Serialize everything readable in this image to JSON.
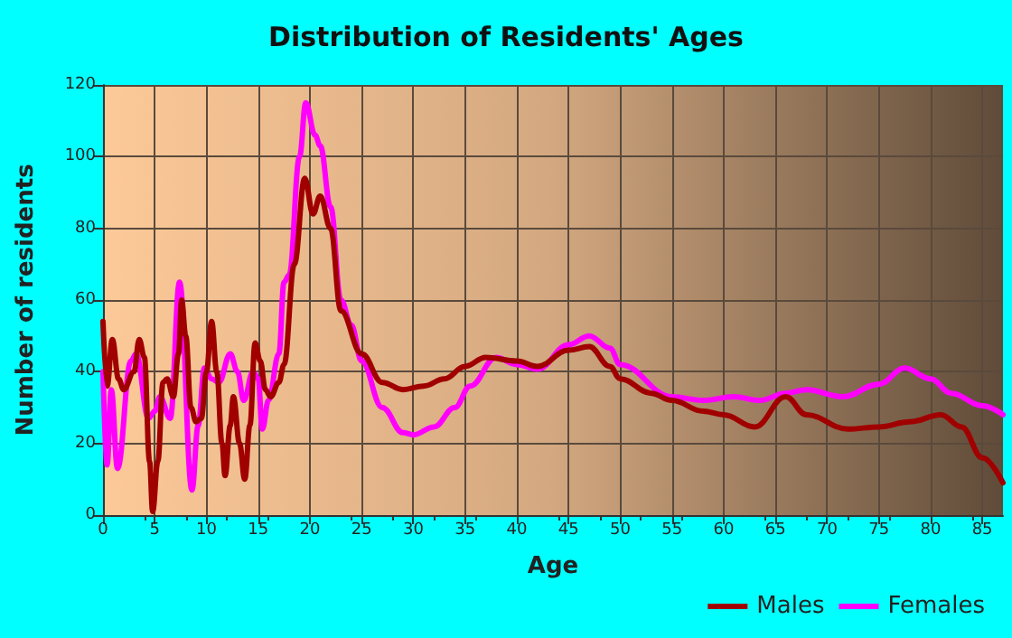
{
  "chart_data": {
    "type": "line",
    "title": "Distribution of Residents' Ages",
    "xlabel": "Age",
    "ylabel": "Number of residents",
    "xlim": [
      0,
      87
    ],
    "xticks": [
      0,
      5,
      10,
      15,
      20,
      25,
      30,
      35,
      40,
      45,
      50,
      55,
      60,
      65,
      70,
      75,
      80,
      85
    ],
    "ylim": [
      0,
      120
    ],
    "yticks": [
      0,
      20,
      40,
      60,
      80,
      100,
      120
    ],
    "grid": true,
    "legend": "bottom right",
    "marker": "none",
    "line_style": "solid",
    "series": [
      {
        "name": "Males",
        "color": "#a00000",
        "x": [
          0,
          0.4,
          0.9,
          1.5,
          2,
          3,
          3.5,
          4,
          4.5,
          4.8,
          5.3,
          5.8,
          6.2,
          6.8,
          7.3,
          7.6,
          8,
          8.5,
          9,
          9.5,
          10,
          10.5,
          11,
          11.5,
          11.8,
          12.3,
          12.6,
          13.2,
          13.7,
          14.2,
          14.7,
          15.2,
          15.7,
          16.2,
          17,
          17.5,
          18.5,
          19.5,
          20.3,
          21,
          22,
          23,
          25,
          27,
          29,
          31,
          33,
          35,
          37,
          40,
          42,
          45,
          47,
          49,
          50,
          53,
          55,
          58,
          60,
          63,
          66,
          68,
          72,
          75,
          78,
          81,
          83,
          85,
          87
        ],
        "values": [
          54,
          36,
          49,
          38,
          35,
          40,
          49,
          44,
          15,
          1,
          15,
          37,
          38,
          33,
          45,
          60,
          50,
          30,
          26,
          27,
          40,
          54,
          40,
          20,
          11,
          25,
          33,
          20,
          10,
          25,
          48,
          43,
          35,
          33,
          37,
          42,
          70,
          94,
          84,
          89,
          80,
          57,
          45,
          37,
          35,
          36,
          38,
          41.5,
          44,
          43,
          41.5,
          46,
          47,
          41.5,
          38,
          34,
          32,
          29,
          28,
          24.6,
          33,
          28,
          24,
          24.6,
          26,
          28,
          24.6,
          16,
          9
        ]
      },
      {
        "name": "Females",
        "color": "#ff00ff",
        "x": [
          0,
          0.4,
          0.8,
          1.4,
          2.7,
          3.2,
          4.4,
          5,
          5.5,
          6.5,
          7.4,
          8.6,
          9.2,
          9.8,
          10.5,
          11.2,
          12.3,
          13,
          13.6,
          14.5,
          15,
          15.4,
          16,
          17,
          17.5,
          18,
          19,
          19.6,
          20.5,
          21,
          22,
          23,
          24,
          25,
          27,
          29,
          30,
          32,
          34,
          35.5,
          38,
          40,
          42,
          45,
          47,
          49,
          50,
          55,
          58,
          61,
          63.5,
          66,
          68,
          71.5,
          75,
          77.5,
          80,
          82,
          85,
          87
        ],
        "values": [
          40,
          14,
          35,
          13,
          43,
          45,
          27,
          29,
          33,
          27,
          65,
          7,
          25,
          41,
          38,
          37,
          45,
          40,
          32,
          40,
          38,
          24,
          32,
          45,
          65,
          67,
          100,
          115,
          106,
          103,
          86,
          60,
          53,
          43,
          30,
          23,
          22.4,
          24.6,
          30,
          36,
          44,
          42,
          40.7,
          47.5,
          50,
          46.6,
          42,
          33,
          32,
          33,
          32,
          34,
          35,
          33,
          36.5,
          41,
          38,
          34,
          30.5,
          28
        ]
      }
    ]
  }
}
